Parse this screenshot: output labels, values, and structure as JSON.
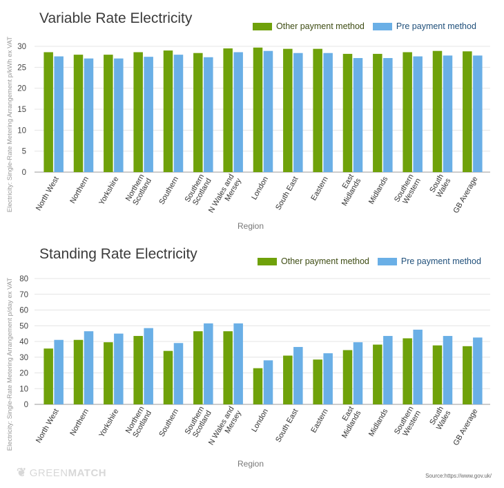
{
  "colors": {
    "other": "#6fa10a",
    "prepay": "#6aafe6",
    "grid": "#e4e4e4",
    "axis": "#9a9a9a"
  },
  "legend": {
    "other": "Other payment method",
    "prepay": "Pre payment method"
  },
  "footer": {
    "brand_light": "GREEN",
    "brand_bold": "MATCH",
    "source": "Source:https://www.gov.uk/"
  },
  "chart_data": [
    {
      "type": "bar",
      "title": "Variable Rate Electricity",
      "xlabel": "Region",
      "ylabel": "Electricity: Single-Rate Metering Arrangement p/kWh ex VAT",
      "ylim": [
        0,
        30
      ],
      "yticks": [
        0,
        5,
        10,
        15,
        20,
        25,
        30
      ],
      "categories": [
        "North West",
        "Northern",
        "Yorkshire",
        "Northern Scotland",
        "Southern",
        "Southern Scotland",
        "N Wales and Mersey",
        "London",
        "South East",
        "Eastern",
        "East Midlands",
        "Midlands",
        "Southern Western",
        "South Wales",
        "GB Average"
      ],
      "series": [
        {
          "name": "Other payment method",
          "values": [
            28.6,
            28.0,
            28.0,
            28.6,
            29.0,
            28.4,
            29.5,
            29.7,
            29.4,
            29.4,
            28.2,
            28.2,
            28.6,
            28.9,
            28.8
          ]
        },
        {
          "name": "Pre payment method",
          "values": [
            27.6,
            27.1,
            27.1,
            27.5,
            28.0,
            27.4,
            28.6,
            28.9,
            28.4,
            28.4,
            27.2,
            27.2,
            27.6,
            27.8,
            27.8
          ]
        }
      ],
      "grid": true,
      "legend_position": "top-right"
    },
    {
      "type": "bar",
      "title": "Standing Rate Electricity",
      "xlabel": "Region",
      "ylabel": "Electricity: Single-Rate Metering Arrangement p/day ex VAT",
      "ylim": [
        0,
        80
      ],
      "yticks": [
        0,
        10,
        20,
        30,
        40,
        50,
        60,
        70,
        80
      ],
      "categories": [
        "North West",
        "Northern",
        "Yorkshire",
        "Northern Scotland",
        "Southern",
        "Southern Scotland",
        "N Wales and Mersey",
        "London",
        "South East",
        "Eastern",
        "East Midlands",
        "Midlands",
        "Southern Western",
        "South Wales",
        "GB Average"
      ],
      "series": [
        {
          "name": "Other payment method",
          "values": [
            35.5,
            41.0,
            39.5,
            43.5,
            34.0,
            46.5,
            46.5,
            23.0,
            31.0,
            28.5,
            34.5,
            38.0,
            42.0,
            37.5,
            37.0
          ]
        },
        {
          "name": "Pre payment method",
          "values": [
            41.0,
            46.5,
            45.0,
            48.5,
            39.0,
            51.5,
            51.5,
            28.0,
            36.5,
            32.5,
            39.5,
            43.5,
            47.5,
            43.5,
            42.5
          ]
        }
      ],
      "grid": true,
      "legend_position": "top-right"
    }
  ]
}
